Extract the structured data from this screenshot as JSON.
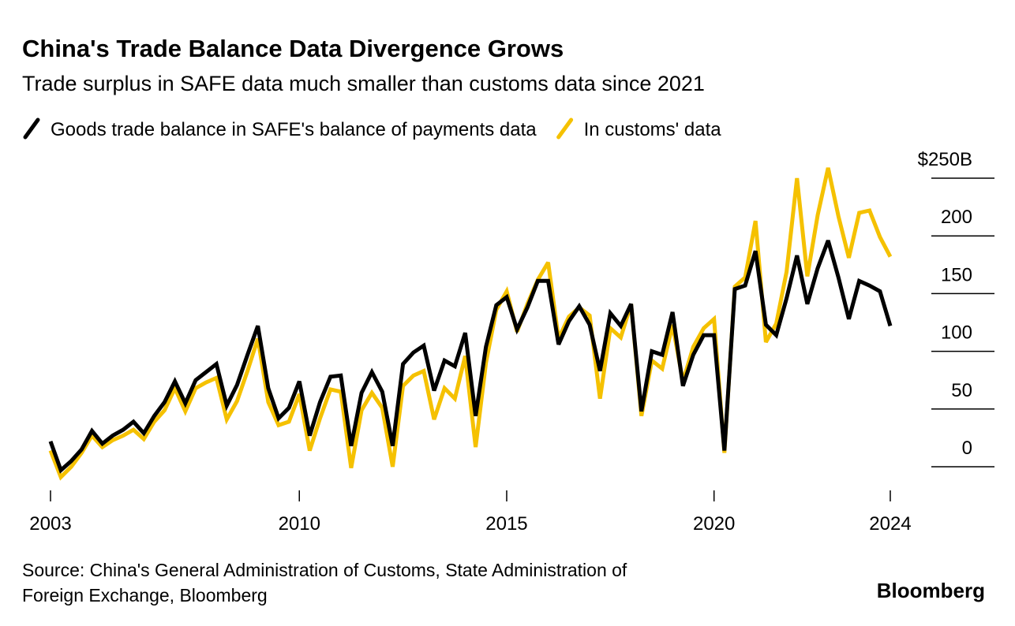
{
  "chart_data": {
    "type": "line",
    "title": "China's Trade Balance Data Divergence Grows",
    "subtitle": "Trade surplus in SAFE data much smaller than customs data since 2021",
    "source": [
      "Source: China's General Administration of Customs, State Administration of",
      "Foreign Exchange, Bloomberg"
    ],
    "logo": "Bloomberg",
    "categories": [
      "2003",
      null,
      null,
      null,
      null,
      null,
      null,
      null,
      null,
      null,
      null,
      null,
      null,
      null,
      null,
      null,
      null,
      null,
      null,
      null,
      null,
      null,
      null,
      null,
      "2010",
      null,
      null,
      null,
      null,
      null,
      null,
      null,
      null,
      null,
      null,
      null,
      null,
      null,
      null,
      null,
      null,
      null,
      null,
      null,
      "2015",
      null,
      null,
      null,
      null,
      null,
      null,
      null,
      null,
      null,
      null,
      null,
      null,
      null,
      null,
      null,
      null,
      null,
      null,
      null,
      "2020",
      null,
      null,
      null,
      null,
      null,
      null,
      null,
      null,
      null,
      null,
      null,
      null,
      null,
      null,
      null,
      null,
      "2024"
    ],
    "series": [
      {
        "name": "In customs' data",
        "color": "#f5c100",
        "values": [
          14,
          -9,
          0,
          12,
          27,
          17,
          23,
          27,
          32,
          24,
          39,
          49,
          68,
          48,
          68,
          73,
          77,
          41,
          57,
          83,
          111,
          56,
          36,
          39,
          63,
          14,
          42,
          67,
          65,
          -1,
          49,
          64,
          51,
          0,
          70,
          79,
          83,
          41,
          68,
          59,
          96,
          17,
          90,
          136,
          152,
          117,
          141,
          162,
          177,
          111,
          130,
          138,
          131,
          59,
          120,
          112,
          141,
          44,
          92,
          85,
          123,
          74,
          104,
          120,
          128,
          12,
          156,
          164,
          213,
          108,
          124,
          169,
          250,
          165,
          218,
          259,
          217,
          181,
          220,
          222,
          199,
          182
        ]
      },
      {
        "name": "Goods trade balance in SAFE's balance of payments data",
        "color": "#000000",
        "values": [
          22,
          -3,
          5,
          15,
          31,
          20,
          27,
          32,
          39,
          29,
          44,
          56,
          74,
          55,
          75,
          82,
          89,
          53,
          71,
          97,
          122,
          68,
          42,
          51,
          74,
          27,
          56,
          78,
          79,
          18,
          64,
          82,
          65,
          18,
          89,
          99,
          105,
          66,
          92,
          87,
          116,
          44,
          104,
          140,
          147,
          119,
          138,
          161,
          161,
          106,
          126,
          139,
          123,
          83,
          133,
          122,
          141,
          48,
          100,
          97,
          134,
          70,
          97,
          114,
          114,
          14,
          154,
          157,
          187,
          123,
          114,
          146,
          183,
          141,
          172,
          196,
          164,
          128,
          161,
          157,
          152,
          122
        ]
      }
    ],
    "ylim": [
      -19,
      260
    ],
    "yticks": [
      0,
      50,
      100,
      150,
      {
        "value": 200,
        "label": "200"
      },
      {
        "value": 250,
        "label": "$250B"
      }
    ],
    "grid": true
  }
}
